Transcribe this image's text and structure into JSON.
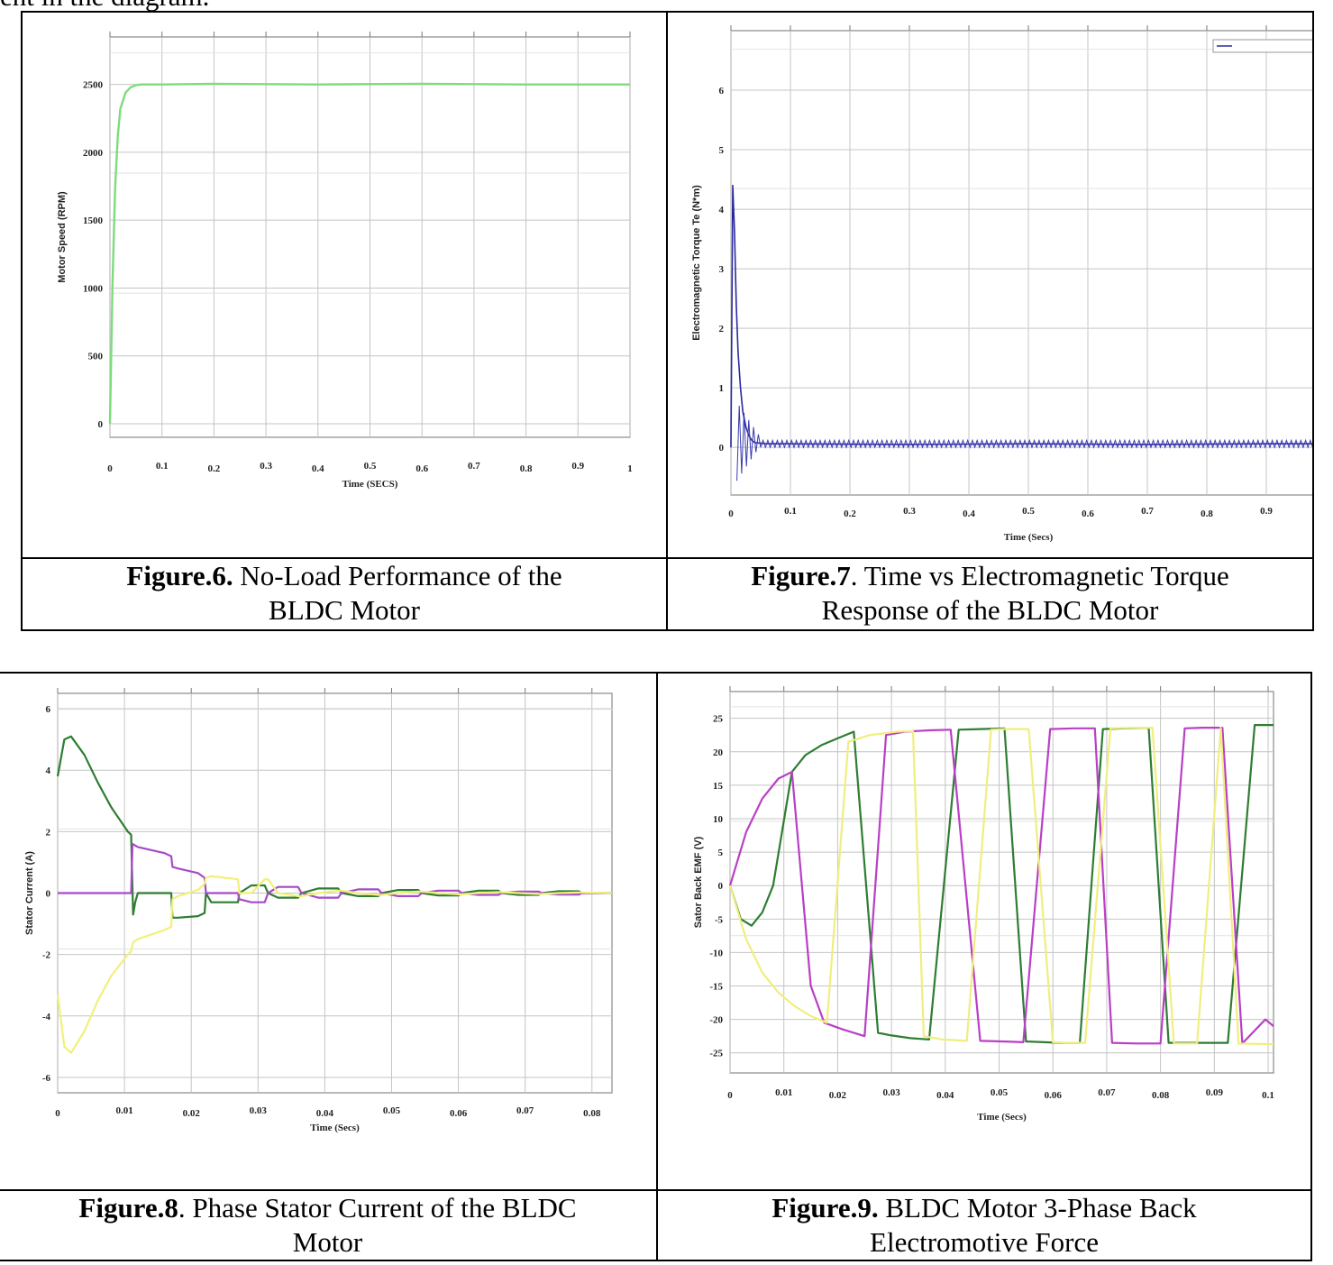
{
  "top_text": "ent in the diagram.",
  "figures": [
    {
      "caption_bold": "Figure.6.",
      "caption_line1": " No-Load Performance of the",
      "caption_line2": "BLDC Motor"
    },
    {
      "caption_bold": "Figure.7",
      "caption_line1": ". Time vs Electromagnetic Torque",
      "caption_line2": "Response of the BLDC Motor"
    },
    {
      "caption_bold": "Figure.8",
      "caption_line1": ". Phase Stator Current of the BLDC",
      "caption_line2": "Motor"
    },
    {
      "caption_bold": "Figure.9.",
      "caption_line1": " BLDC Motor 3-Phase Back",
      "caption_line2": "Electromotive Force"
    }
  ],
  "chart_data": [
    {
      "type": "line",
      "xlabel": "Time (SECS)",
      "ylabel": "Motor Speed (RPM)",
      "xlim": [
        0,
        1
      ],
      "ylim": [
        -100,
        2850
      ],
      "x_ticks": [
        "0",
        "0.1",
        "0.2",
        "0.3",
        "0.4",
        "0.5",
        "0.6",
        "0.7",
        "0.8",
        "0.9",
        "1"
      ],
      "y_ticks": [
        "0",
        "500",
        "1000",
        "1500",
        "2000",
        "2500"
      ],
      "grid": true,
      "colors": {
        "speed": "#7ddc7d"
      },
      "series": [
        {
          "x": [
            0,
            0.005,
            0.01,
            0.015,
            0.02,
            0.03,
            0.04,
            0.05,
            0.06,
            0.08,
            0.1,
            0.2,
            0.4,
            0.6,
            0.8,
            1.0
          ],
          "y": [
            0,
            1050,
            1750,
            2120,
            2320,
            2440,
            2480,
            2495,
            2500,
            2500,
            2500,
            2505,
            2500,
            2505,
            2500,
            2500
          ]
        }
      ]
    },
    {
      "type": "line",
      "xlabel": "Time (Secs)",
      "ylabel": "Electromagnetic Torque Te (N*m)",
      "xlim": [
        0,
        1
      ],
      "ylim": [
        -0.8,
        7
      ],
      "x_ticks": [
        "0",
        "0.1",
        "0.2",
        "0.3",
        "0.4",
        "0.5",
        "0.6",
        "0.7",
        "0.8",
        "0.9"
      ],
      "y_ticks": [
        "0",
        "1",
        "2",
        "3",
        "4",
        "5",
        "6"
      ],
      "grid": true,
      "colors": {
        "torque": "#2a2aa0"
      },
      "series": [
        {
          "x": [
            0,
            0.003,
            0.006,
            0.009,
            0.012,
            0.016,
            0.02,
            0.025,
            0.03,
            0.035,
            0.04,
            0.05,
            0.06,
            0.08,
            0.1,
            0.3,
            0.5,
            0.7,
            0.9,
            1.0
          ],
          "y": [
            0,
            4.4,
            3.6,
            2.4,
            1.6,
            1.0,
            0.6,
            0.35,
            0.2,
            0.12,
            0.08,
            0.07,
            0.06,
            0.06,
            0.06,
            0.05,
            0.06,
            0.05,
            0.06,
            0.06
          ]
        }
      ]
    },
    {
      "type": "line",
      "xlabel": "Time (Secs)",
      "ylabel": "Stator Current (A)",
      "xlim": [
        0,
        0.083
      ],
      "ylim": [
        -6.5,
        6.5
      ],
      "x_ticks": [
        "0",
        "0.01",
        "0.02",
        "0.03",
        "0.04",
        "0.05",
        "0.06",
        "0.07",
        "0.08"
      ],
      "y_ticks": [
        "-6",
        "-4",
        "-2",
        "0",
        "2",
        "4",
        "6"
      ],
      "grid": true,
      "series": [
        {
          "color": "#2e7d32",
          "x": [
            0,
            0.001,
            0.002,
            0.004,
            0.006,
            0.008,
            0.0105,
            0.011,
            0.0113,
            0.0116,
            0.012,
            0.013,
            0.016,
            0.017,
            0.0172,
            0.018,
            0.021,
            0.022,
            0.0222,
            0.023,
            0.025,
            0.027,
            0.0272,
            0.029,
            0.031,
            0.0315,
            0.033,
            0.036,
            0.0365,
            0.039,
            0.042,
            0.0425,
            0.045,
            0.048,
            0.0485,
            0.051,
            0.054,
            0.0545,
            0.057,
            0.06,
            0.0605,
            0.063,
            0.066,
            0.0665,
            0.069,
            0.072,
            0.0725,
            0.075,
            0.078,
            0.0785,
            0.083
          ],
          "y": [
            3.8,
            5.0,
            5.1,
            4.5,
            3.6,
            2.8,
            2.0,
            1.9,
            -0.7,
            -0.3,
            0.0,
            0.0,
            0.0,
            0.0,
            -0.8,
            -0.8,
            -0.75,
            -0.65,
            0.0,
            -0.3,
            -0.3,
            -0.3,
            0.0,
            0.25,
            0.25,
            0.0,
            -0.15,
            -0.15,
            0.0,
            0.15,
            0.15,
            0.0,
            -0.1,
            -0.1,
            0.0,
            0.1,
            0.1,
            0.0,
            -0.08,
            -0.08,
            0.0,
            0.08,
            0.08,
            0.0,
            -0.06,
            -0.06,
            0.0,
            0.06,
            0.06,
            0.0,
            0.0
          ]
        },
        {
          "color": "#a64ac9",
          "x": [
            0,
            0.011,
            0.0112,
            0.012,
            0.016,
            0.017,
            0.0172,
            0.018,
            0.021,
            0.022,
            0.0222,
            0.023,
            0.025,
            0.027,
            0.0272,
            0.029,
            0.031,
            0.0315,
            0.033,
            0.036,
            0.0365,
            0.039,
            0.042,
            0.0425,
            0.045,
            0.048,
            0.0485,
            0.051,
            0.054,
            0.0545,
            0.057,
            0.06,
            0.0605,
            0.063,
            0.066,
            0.0665,
            0.069,
            0.072,
            0.0725,
            0.075,
            0.078,
            0.0785,
            0.083
          ],
          "y": [
            0,
            0,
            1.6,
            1.5,
            1.3,
            1.2,
            0.85,
            0.8,
            0.65,
            0.5,
            0.0,
            0.0,
            0.0,
            0.0,
            -0.2,
            -0.3,
            -0.3,
            0.0,
            0.2,
            0.2,
            0.0,
            -0.15,
            -0.15,
            0.0,
            0.12,
            0.12,
            0.0,
            -0.1,
            -0.1,
            0.0,
            0.08,
            0.08,
            0.0,
            -0.06,
            -0.06,
            0.0,
            0.05,
            0.05,
            0.0,
            -0.05,
            -0.05,
            0.0,
            0.0
          ]
        },
        {
          "color": "#f2f07a",
          "x": [
            0,
            0.001,
            0.002,
            0.004,
            0.006,
            0.008,
            0.0105,
            0.011,
            0.0113,
            0.012,
            0.016,
            0.017,
            0.0172,
            0.018,
            0.021,
            0.022,
            0.0222,
            0.023,
            0.025,
            0.027,
            0.0272,
            0.029,
            0.031,
            0.0315,
            0.033,
            0.036,
            0.0365,
            0.039,
            0.042,
            0.0425,
            0.045,
            0.048,
            0.0485,
            0.051,
            0.054,
            0.0545,
            0.057,
            0.06,
            0.0605,
            0.063,
            0.066,
            0.0665,
            0.069,
            0.072,
            0.0725,
            0.075,
            0.078,
            0.0785,
            0.083
          ],
          "y": [
            -3.3,
            -5.0,
            -5.2,
            -4.5,
            -3.5,
            -2.7,
            -2.0,
            -1.9,
            -1.6,
            -1.5,
            -1.2,
            -1.1,
            -0.2,
            -0.1,
            0.1,
            0.3,
            0.5,
            0.55,
            0.5,
            0.45,
            0.0,
            0.0,
            0.45,
            0.45,
            0.0,
            -0.1,
            -0.1,
            0.0,
            0.08,
            0.08,
            0.0,
            -0.06,
            -0.06,
            0.0,
            0.05,
            0.05,
            0.0,
            -0.04,
            -0.04,
            0.0,
            0.03,
            0.03,
            0.0,
            -0.03,
            -0.03,
            0.0,
            0.02,
            0.02,
            0.0
          ]
        }
      ]
    },
    {
      "type": "line",
      "xlabel": "Time (Secs)",
      "ylabel": "Sator Back EMF (V)",
      "xlim": [
        0,
        0.101
      ],
      "ylim": [
        -28,
        29
      ],
      "x_ticks": [
        "0",
        "0.01",
        "0.02",
        "0.03",
        "0.04",
        "0.05",
        "0.06",
        "0.07",
        "0.08",
        "0.09",
        "0.1"
      ],
      "y_ticks": [
        "25",
        "20",
        "15",
        "10",
        "5",
        "0",
        "-5",
        "-10",
        "-15",
        "-20",
        "-25"
      ],
      "grid": true,
      "series": [
        {
          "color": "#2e7d32",
          "x": [
            0,
            0.002,
            0.004,
            0.006,
            0.008,
            0.0115,
            0.014,
            0.017,
            0.02,
            0.023,
            0.0275,
            0.03,
            0.0335,
            0.037,
            0.0425,
            0.0465,
            0.051,
            0.055,
            0.0615,
            0.065,
            0.0693,
            0.0733,
            0.0778,
            0.0815,
            0.0882,
            0.0925,
            0.0975,
            0.101
          ],
          "y": [
            0,
            -5,
            -6,
            -4,
            0,
            17,
            19.5,
            21,
            22,
            23,
            -22,
            -22.4,
            -22.8,
            -23,
            23.3,
            23.4,
            23.5,
            -23.3,
            -23.5,
            -23.5,
            23.4,
            23.5,
            23.6,
            -23.5,
            -23.5,
            -23.5,
            24,
            24
          ]
        },
        {
          "color": "#b93fc6",
          "x": [
            0,
            0.003,
            0.006,
            0.009,
            0.0115,
            0.015,
            0.0175,
            0.021,
            0.025,
            0.029,
            0.0325,
            0.037,
            0.041,
            0.0465,
            0.051,
            0.0545,
            0.0595,
            0.064,
            0.0678,
            0.071,
            0.0755,
            0.08,
            0.0845,
            0.0878,
            0.0915,
            0.0952,
            0.0995,
            0.101
          ],
          "y": [
            0,
            8,
            13,
            16,
            17,
            -15,
            -20.5,
            -21.5,
            -22.5,
            22.5,
            23,
            23.2,
            23.3,
            -23.2,
            -23.3,
            -23.4,
            23.4,
            23.5,
            23.5,
            -23.5,
            -23.6,
            -23.6,
            23.5,
            23.6,
            23.6,
            -23.6,
            -20,
            -21
          ]
        },
        {
          "color": "#f0ee7e",
          "x": [
            0,
            0.003,
            0.006,
            0.009,
            0.012,
            0.015,
            0.018,
            0.022,
            0.026,
            0.031,
            0.034,
            0.036,
            0.0395,
            0.044,
            0.0485,
            0.051,
            0.0555,
            0.06,
            0.0625,
            0.066,
            0.0707,
            0.075,
            0.0785,
            0.0825,
            0.0868,
            0.0912,
            0.0945,
            0.101
          ],
          "y": [
            0,
            -8,
            -13,
            -16,
            -18,
            -19.5,
            -20.5,
            21.5,
            22.5,
            23,
            23.1,
            -22.5,
            -23,
            -23.2,
            23.3,
            23.4,
            23.4,
            -23.4,
            -23.5,
            -23.5,
            23.5,
            23.6,
            23.6,
            -23.6,
            -23.6,
            23.6,
            -23.6,
            -23.7
          ]
        }
      ]
    }
  ]
}
